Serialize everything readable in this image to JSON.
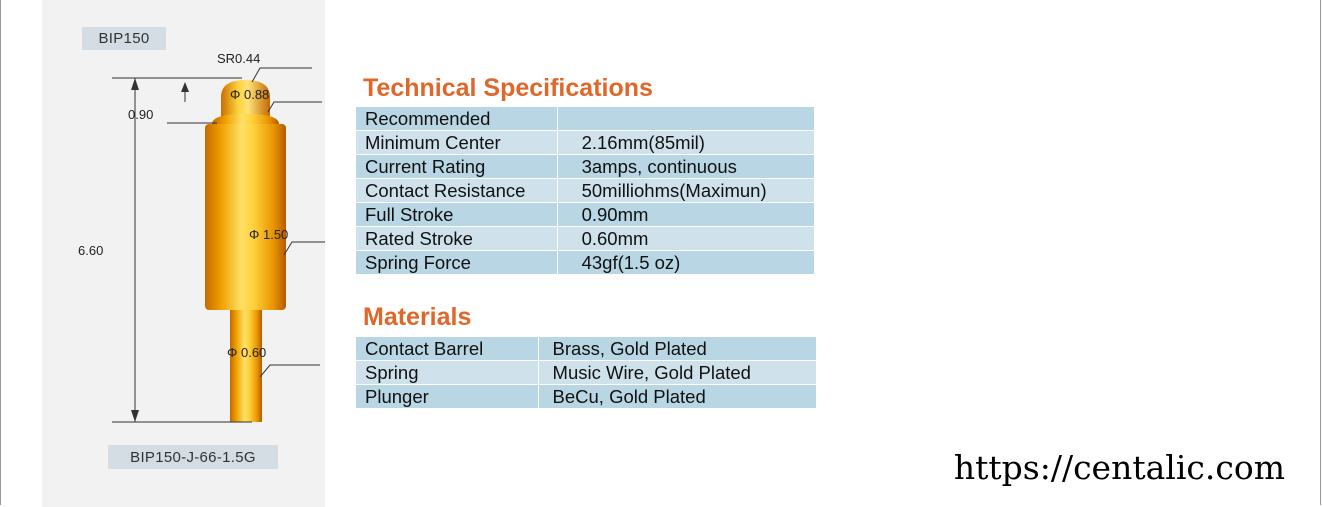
{
  "drawing": {
    "model_label": "BIP150",
    "part_number": "BIP150-J-66-1.5G",
    "dims": {
      "tip_radius": "SR0.44",
      "tip_diameter": "Φ 0.88",
      "tip_length": "0.90",
      "total_length": "6.60",
      "barrel_diameter": "Φ 1.50",
      "plunger_diameter": "Φ 0.60"
    }
  },
  "specs": {
    "title": "Technical Specifications",
    "rows": [
      {
        "label": "Recommended",
        "value": ""
      },
      {
        "label": "Minimum Center",
        "value": "2.16mm(85mil)"
      },
      {
        "label": "Current Rating",
        "value": "3amps, continuous"
      },
      {
        "label": "Contact Resistance",
        "value": "50milliohms(Maximun)"
      },
      {
        "label": "Full Stroke",
        "value": "0.90mm"
      },
      {
        "label": "Rated Stroke",
        "value": "0.60mm"
      },
      {
        "label": "Spring Force",
        "value": "43gf(1.5 oz)"
      }
    ]
  },
  "materials": {
    "title": "Materials",
    "rows": [
      {
        "label": "Contact Barrel",
        "value": "Brass, Gold Plated"
      },
      {
        "label": "Spring",
        "value": "Music Wire, Gold Plated"
      },
      {
        "label": "Plunger",
        "value": "BeCu, Gold Plated"
      }
    ]
  },
  "watermark": "https://centalic.com",
  "colors": {
    "title": "#e0672a",
    "row_dark": "#b9d6e5",
    "row_light": "#cfe2ec",
    "pin_gold": "#f0a000",
    "label_box": "#d4dde3"
  }
}
